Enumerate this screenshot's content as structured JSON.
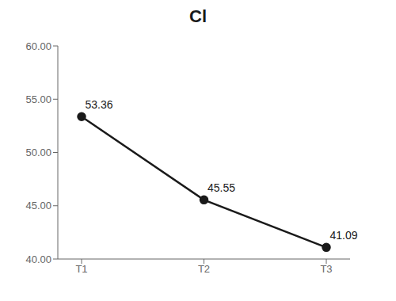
{
  "chart_data": {
    "type": "line",
    "title": "Cl",
    "categories": [
      "T1",
      "T2",
      "T3"
    ],
    "values": [
      53.36,
      45.55,
      41.09
    ],
    "color": "#1a1a1a",
    "marker": "circle",
    "data_labels": true,
    "ylim": [
      40.0,
      60.0
    ],
    "yticks": [
      {
        "value": 40.0,
        "label": "40.00"
      },
      {
        "value": 45.0,
        "label": "45.00"
      },
      {
        "value": 50.0,
        "label": "50.00"
      },
      {
        "value": 55.0,
        "label": "55.00"
      },
      {
        "value": 60.0,
        "label": "60.00"
      }
    ],
    "grid": false
  }
}
